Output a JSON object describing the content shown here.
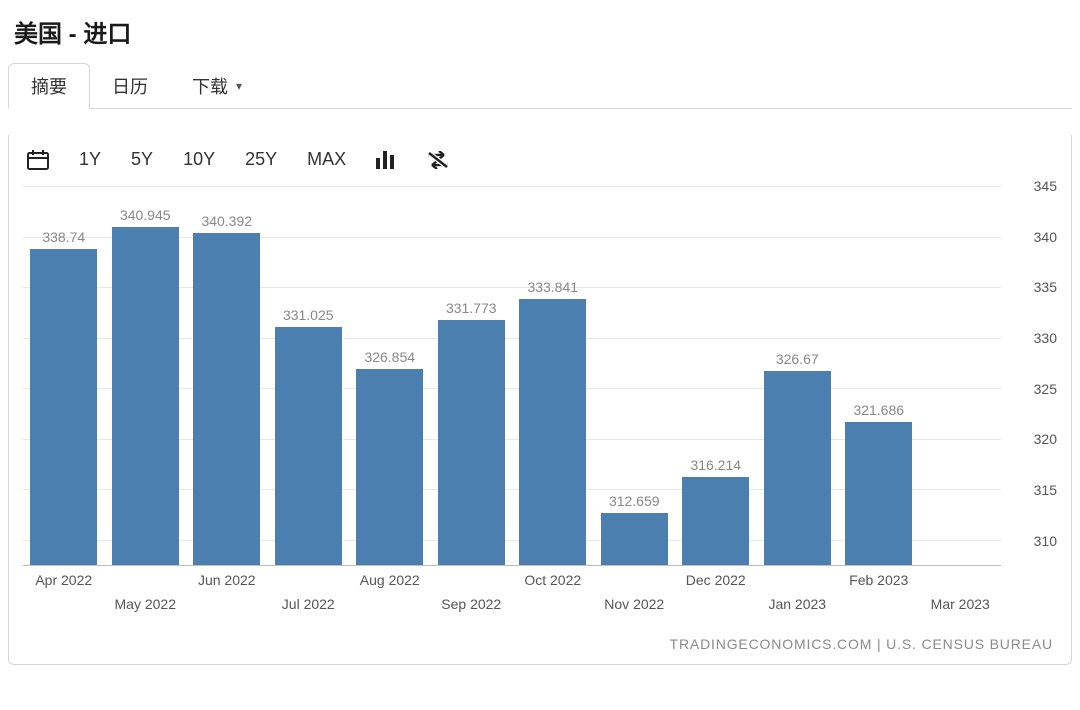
{
  "title": "美国 - 进口",
  "tabs": [
    {
      "label": "摘要",
      "active": true
    },
    {
      "label": "日历",
      "active": false
    },
    {
      "label": "下载",
      "active": false,
      "hasDropdown": true
    }
  ],
  "toolbar": {
    "ranges": [
      "1Y",
      "5Y",
      "10Y",
      "25Y",
      "MAX"
    ]
  },
  "chart": {
    "type": "bar",
    "bar_color": "#4a7fb0",
    "value_label_color": "#888888",
    "axis_label_color": "#555555",
    "grid_color": "#e8e8e8",
    "axis_line_color": "#bdbdbd",
    "background_color": "#ffffff",
    "value_fontsize": 14,
    "axis_fontsize": 14,
    "ylim": [
      307.5,
      345
    ],
    "yticks": [
      310,
      315,
      320,
      325,
      330,
      335,
      340,
      345
    ],
    "bar_width_ratio": 0.82,
    "x_trailing_label": "Mar 2023",
    "data": [
      {
        "label": "Apr 2022",
        "value": 338.74,
        "xrow": 0
      },
      {
        "label": "May 2022",
        "value": 340.945,
        "xrow": 1
      },
      {
        "label": "Jun 2022",
        "value": 340.392,
        "xrow": 0
      },
      {
        "label": "Jul 2022",
        "value": 331.025,
        "xrow": 1
      },
      {
        "label": "Aug 2022",
        "value": 326.854,
        "xrow": 0
      },
      {
        "label": "Sep 2022",
        "value": 331.773,
        "xrow": 1
      },
      {
        "label": "Oct 2022",
        "value": 333.841,
        "xrow": 0
      },
      {
        "label": "Nov 2022",
        "value": 312.659,
        "xrow": 1
      },
      {
        "label": "Dec 2022",
        "value": 316.214,
        "xrow": 0
      },
      {
        "label": "Jan 2023",
        "value": 326.67,
        "xrow": 1
      },
      {
        "label": "Feb 2023",
        "value": 321.686,
        "xrow": 0
      }
    ]
  },
  "source": "TRADINGECONOMICS.COM  |  U.S. CENSUS BUREAU"
}
